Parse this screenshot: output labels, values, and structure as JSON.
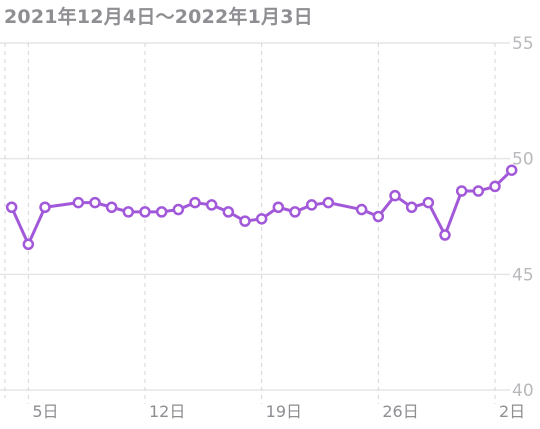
{
  "title": "2021年12月4日〜2022年1月3日",
  "colors": {
    "line": "#a259d9",
    "point_fill": "#ffffff",
    "grid": "#e6e6e9",
    "vgrid": "#d6d6da"
  },
  "chart_data": {
    "type": "line",
    "title": "2021年12月4日〜2022年1月3日",
    "xlabel": "",
    "ylabel": "",
    "ylim": [
      40,
      55
    ],
    "yticks": [
      40,
      45,
      50,
      55
    ],
    "ytick_labels": [
      "40",
      "45",
      "50",
      "55"
    ],
    "xlim": [
      "2021-12-04",
      "2022-01-03"
    ],
    "xticks": [
      "2021-12-05",
      "2021-12-12",
      "2021-12-19",
      "2021-12-26",
      "2022-01-02"
    ],
    "xtick_labels": [
      "5日",
      "12日",
      "19日",
      "26日",
      "2日"
    ],
    "grid": true,
    "legend": "none",
    "series": [
      {
        "x": [
          "2021-12-04",
          "2021-12-05",
          "2021-12-06",
          "2021-12-08",
          "2021-12-09",
          "2021-12-10",
          "2021-12-11",
          "2021-12-12",
          "2021-12-13",
          "2021-12-14",
          "2021-12-15",
          "2021-12-16",
          "2021-12-17",
          "2021-12-18",
          "2021-12-19",
          "2021-12-20",
          "2021-12-21",
          "2021-12-22",
          "2021-12-23",
          "2021-12-25",
          "2021-12-26",
          "2021-12-27",
          "2021-12-28",
          "2021-12-29",
          "2021-12-30",
          "2021-12-31",
          "2022-01-01",
          "2022-01-02",
          "2022-01-03"
        ],
        "y": [
          47.9,
          46.3,
          47.9,
          48.1,
          48.1,
          47.9,
          47.7,
          47.7,
          47.7,
          47.8,
          48.1,
          48.0,
          47.7,
          47.3,
          47.4,
          47.9,
          47.7,
          48.0,
          48.1,
          47.8,
          47.5,
          48.4,
          47.9,
          48.1,
          46.7,
          48.6,
          48.6,
          48.8,
          49.5
        ]
      }
    ]
  }
}
